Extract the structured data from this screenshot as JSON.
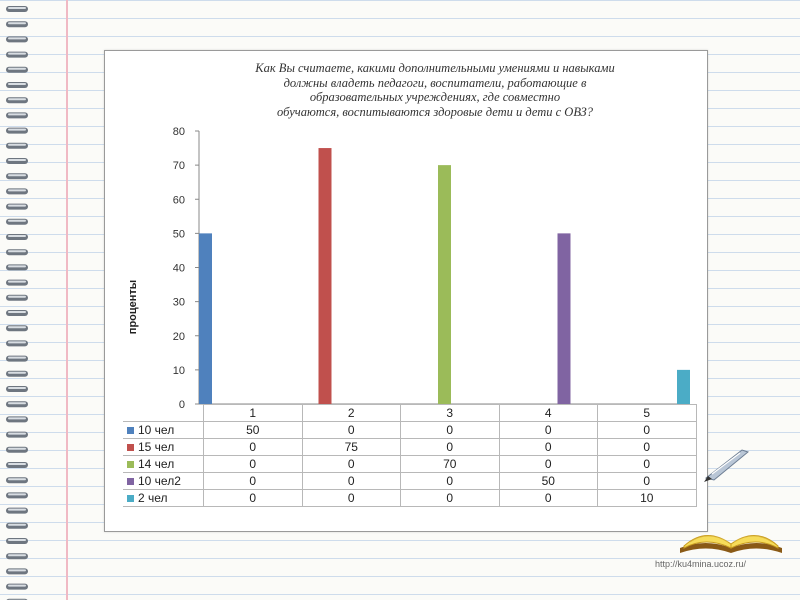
{
  "chart_data": {
    "type": "bar",
    "title": "Как Вы считаете, какими дополнительными умениями и навыками должны владеть педагоги, воспитатели,  работающие в образовательных учреждениях, где совместно обучаются, воспитываются здоровые дети и дети с ОВЗ?",
    "title_lines": [
      "Как Вы считаете, какими дополнительными умениями и навыками",
      "должны владеть педагоги, воспитатели,  работающие в",
      "образовательных учреждениях, где совместно",
      "обучаются, воспитываются здоровые дети и дети с ОВЗ?"
    ],
    "ylabel": "проценты",
    "xlabel": "",
    "ylim": [
      0,
      80
    ],
    "yticks": [
      "0",
      "10",
      "20",
      "30",
      "40",
      "50",
      "60",
      "70",
      "80"
    ],
    "grid": false,
    "categories": [
      "1",
      "2",
      "3",
      "4",
      "5"
    ],
    "legend_placement": "data-table-left",
    "series": [
      {
        "name": "10 чел",
        "color": "#4f81bd",
        "values": [
          50,
          0,
          0,
          0,
          0
        ],
        "labels": [
          "50",
          "0",
          "0",
          "0",
          "0"
        ]
      },
      {
        "name": "15 чел",
        "color": "#c0504d",
        "values": [
          0,
          75,
          0,
          0,
          0
        ],
        "labels": [
          "0",
          "75",
          "0",
          "0",
          "0"
        ]
      },
      {
        "name": "14 чел",
        "color": "#9bbb59",
        "values": [
          0,
          0,
          70,
          0,
          0
        ],
        "labels": [
          "0",
          "0",
          "70",
          "0",
          "0"
        ]
      },
      {
        "name": "10 чел2",
        "color": "#8064a2",
        "values": [
          0,
          0,
          0,
          50,
          0
        ],
        "labels": [
          "0",
          "0",
          "0",
          "50",
          "0"
        ]
      },
      {
        "name": "2 чел",
        "color": "#4bacc6",
        "values": [
          0,
          0,
          0,
          0,
          10
        ],
        "labels": [
          "0",
          "0",
          "0",
          "0",
          "10"
        ]
      }
    ]
  },
  "footer": {
    "url": "http://ku4mina.ucoz.ru/"
  },
  "decor": {
    "book_icon": "open-book-icon",
    "pen_icon": "quill-pen-icon",
    "spiral_icon": "notebook-spiral-icon"
  }
}
